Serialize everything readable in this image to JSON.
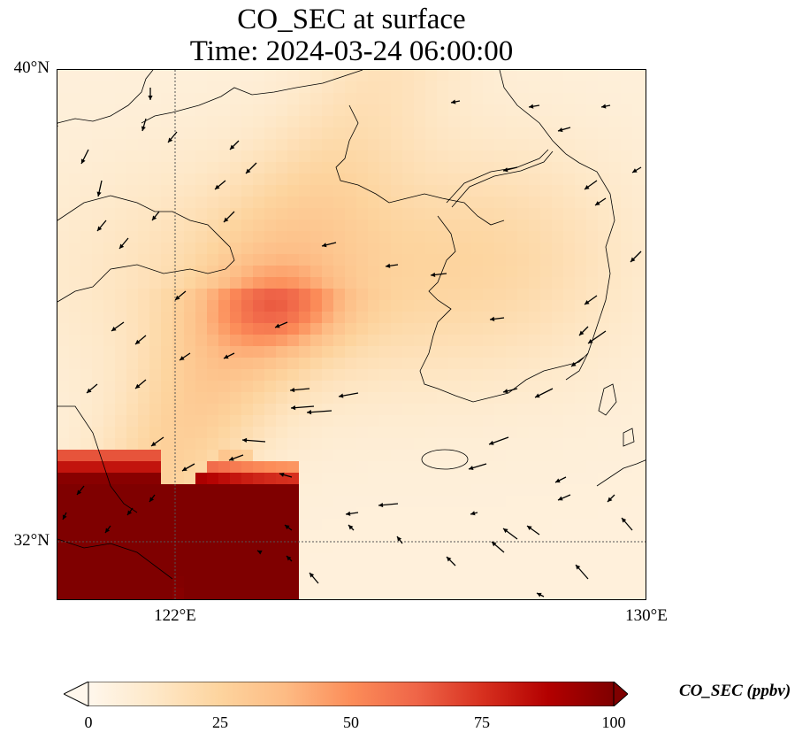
{
  "title": {
    "line1": "CO_SEC at surface",
    "line2": "Time: 2024-03-24 06:00:00"
  },
  "axes": {
    "lat_ticks": [
      "40°N",
      "32°N"
    ],
    "lon_ticks": [
      "122°E",
      "130°E"
    ]
  },
  "map_extent": {
    "lon_min": 120,
    "lon_max": 130,
    "lat_min": 31,
    "lat_max": 40
  },
  "colorbar": {
    "label": "CO_SEC (ppbv)",
    "ticks": [
      "0",
      "25",
      "50",
      "75",
      "100"
    ],
    "min": 0,
    "max": 100,
    "colormap": [
      "#fff7ec",
      "#fee8c8",
      "#fdd49e",
      "#fdbb84",
      "#fc8d59",
      "#ef6548",
      "#d7301f",
      "#b30000",
      "#7f0000"
    ],
    "extend": "both"
  },
  "colors": {
    "coastline": "#000000",
    "gridline": "#555555",
    "wind_arrow": "#000000"
  }
}
